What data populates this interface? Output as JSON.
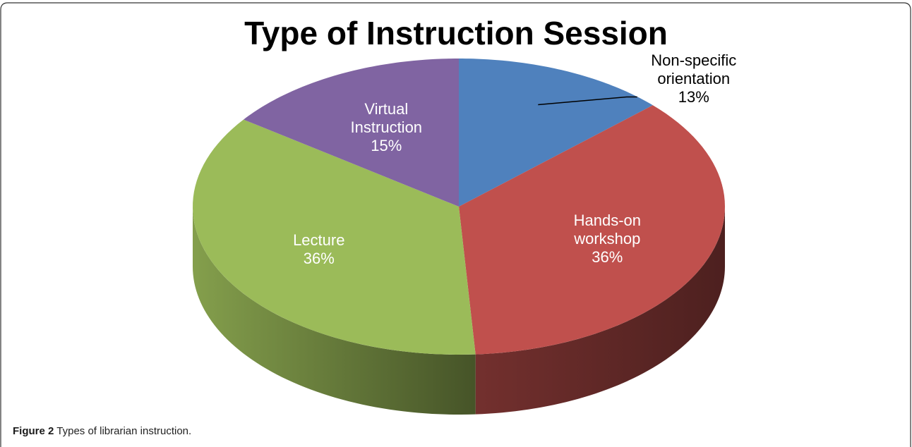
{
  "chart_data": {
    "type": "pie",
    "title": "Type of Instruction Session",
    "categories": [
      "Non-specific orientation",
      "Hands-on workshop",
      "Lecture",
      "Virtual Instruction"
    ],
    "values": [
      13,
      36,
      36,
      15
    ],
    "value_labels": [
      "13%",
      "36%",
      "36%",
      "15%"
    ],
    "colors": [
      "#4f81bd",
      "#c0504d",
      "#9bbb59",
      "#8064a2"
    ],
    "three_d": true
  },
  "caption": {
    "label": "Figure 2",
    "text": "Types of librarian instruction."
  }
}
